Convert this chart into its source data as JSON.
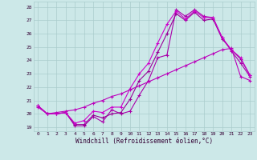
{
  "xlabel": "Windchill (Refroidissement éolien,°C)",
  "xlim": [
    -0.5,
    23.5
  ],
  "ylim": [
    18.7,
    28.4
  ],
  "yticks": [
    19,
    20,
    21,
    22,
    23,
    24,
    25,
    26,
    27,
    28
  ],
  "xticks": [
    0,
    1,
    2,
    3,
    4,
    5,
    6,
    7,
    8,
    9,
    10,
    11,
    12,
    13,
    14,
    15,
    16,
    17,
    18,
    19,
    20,
    21,
    22,
    23
  ],
  "bg_color": "#cce8e8",
  "grid_color": "#aacccc",
  "lines": [
    {
      "y": [
        20.6,
        20.0,
        20.0,
        20.1,
        19.1,
        19.1,
        19.8,
        19.4,
        20.3,
        20.0,
        20.2,
        21.4,
        22.5,
        24.2,
        24.4,
        27.8,
        27.3,
        27.8,
        27.3,
        27.2,
        25.7,
        24.7,
        23.8,
        22.8
      ],
      "color": "#aa00aa"
    },
    {
      "y": [
        20.6,
        20.0,
        20.0,
        20.1,
        19.2,
        19.2,
        19.9,
        19.7,
        20.0,
        20.1,
        21.1,
        22.5,
        23.2,
        24.6,
        26.0,
        27.5,
        27.0,
        27.6,
        27.0,
        27.1,
        25.6,
        24.8,
        24.1,
        22.9
      ],
      "color": "#990099"
    },
    {
      "y": [
        20.6,
        20.0,
        20.0,
        20.1,
        19.3,
        19.5,
        20.2,
        20.1,
        20.5,
        20.5,
        21.9,
        23.0,
        23.8,
        25.3,
        26.7,
        27.7,
        27.1,
        27.7,
        27.2,
        27.2,
        25.7,
        24.8,
        24.2,
        22.9
      ],
      "color": "#cc00cc"
    },
    {
      "y": [
        20.5,
        20.0,
        20.1,
        20.2,
        20.3,
        20.5,
        20.8,
        21.0,
        21.3,
        21.5,
        21.8,
        22.1,
        22.4,
        22.7,
        23.0,
        23.3,
        23.6,
        23.9,
        24.2,
        24.5,
        24.8,
        24.9,
        22.8,
        22.5
      ],
      "color": "#bb00bb"
    }
  ]
}
